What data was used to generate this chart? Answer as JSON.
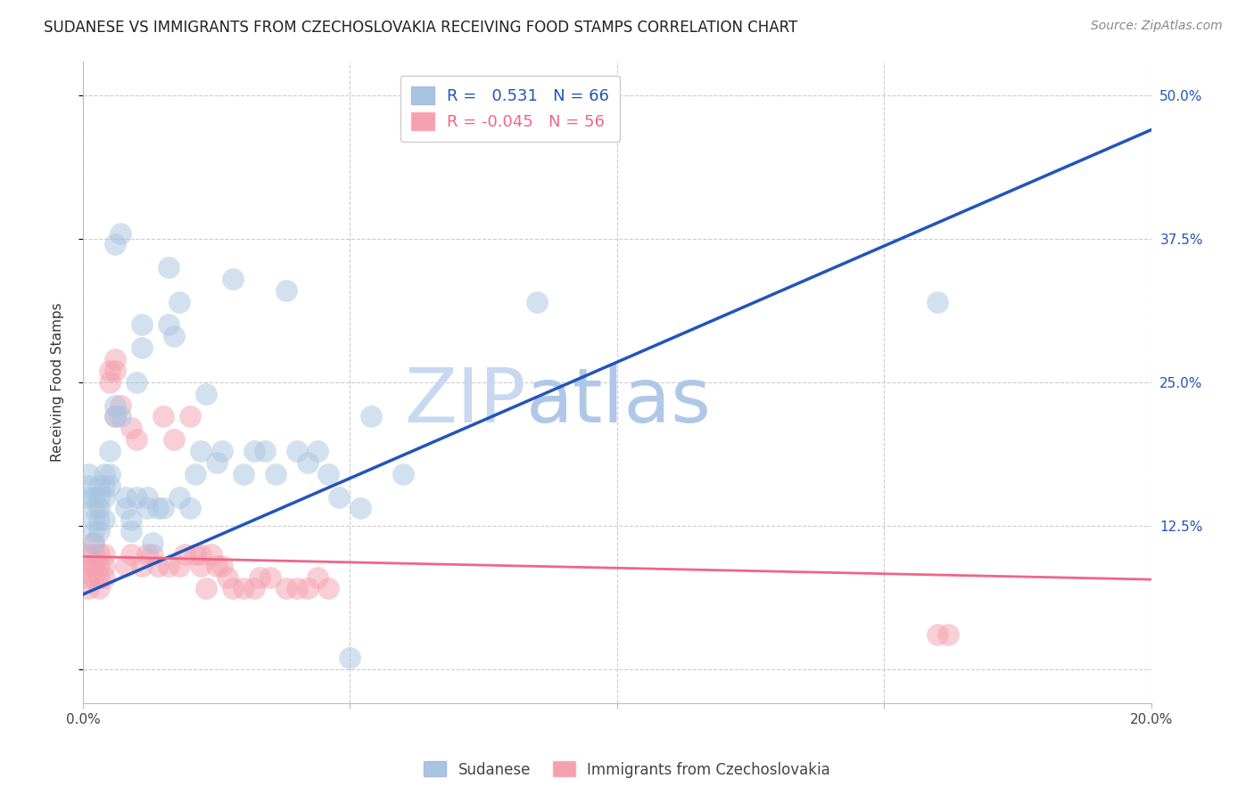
{
  "title": "SUDANESE VS IMMIGRANTS FROM CZECHOSLOVAKIA RECEIVING FOOD STAMPS CORRELATION CHART",
  "source": "Source: ZipAtlas.com",
  "ylabel": "Receiving Food Stamps",
  "xlim": [
    0,
    0.2
  ],
  "ylim": [
    -0.03,
    0.53
  ],
  "xticks": [
    0.0,
    0.05,
    0.1,
    0.15,
    0.2
  ],
  "xtick_labels": [
    "0.0%",
    "",
    "",
    "",
    "20.0%"
  ],
  "yticks": [
    0.0,
    0.125,
    0.25,
    0.375,
    0.5
  ],
  "ytick_labels": [
    "",
    "12.5%",
    "25.0%",
    "37.5%",
    "50.0%"
  ],
  "blue_R": 0.531,
  "blue_N": 66,
  "pink_R": -0.045,
  "pink_N": 56,
  "blue_color": "#A8C4E0",
  "pink_color": "#F4A0B0",
  "blue_line_color": "#2255BB",
  "pink_line_color": "#EE6688",
  "watermark_zip": "ZIP",
  "watermark_atlas": "atlas",
  "background_color": "#FFFFFF",
  "grid_color": "#CCCCCC",
  "blue_line_x": [
    0.0,
    0.2
  ],
  "blue_line_y": [
    0.065,
    0.47
  ],
  "pink_line_x": [
    0.0,
    0.2
  ],
  "pink_line_y": [
    0.098,
    0.078
  ],
  "blue_x": [
    0.001,
    0.001,
    0.001,
    0.002,
    0.002,
    0.002,
    0.002,
    0.002,
    0.003,
    0.003,
    0.003,
    0.003,
    0.003,
    0.004,
    0.004,
    0.004,
    0.004,
    0.005,
    0.005,
    0.005,
    0.006,
    0.006,
    0.006,
    0.007,
    0.007,
    0.008,
    0.008,
    0.009,
    0.009,
    0.01,
    0.01,
    0.011,
    0.011,
    0.012,
    0.012,
    0.013,
    0.014,
    0.015,
    0.016,
    0.016,
    0.017,
    0.018,
    0.018,
    0.02,
    0.021,
    0.022,
    0.023,
    0.025,
    0.026,
    0.028,
    0.03,
    0.032,
    0.034,
    0.036,
    0.038,
    0.04,
    0.042,
    0.044,
    0.046,
    0.048,
    0.05,
    0.052,
    0.054,
    0.06,
    0.085,
    0.16
  ],
  "blue_y": [
    0.17,
    0.16,
    0.15,
    0.15,
    0.14,
    0.13,
    0.12,
    0.11,
    0.16,
    0.15,
    0.14,
    0.13,
    0.12,
    0.17,
    0.16,
    0.15,
    0.13,
    0.19,
    0.17,
    0.16,
    0.37,
    0.23,
    0.22,
    0.38,
    0.22,
    0.15,
    0.14,
    0.13,
    0.12,
    0.25,
    0.15,
    0.3,
    0.28,
    0.15,
    0.14,
    0.11,
    0.14,
    0.14,
    0.35,
    0.3,
    0.29,
    0.32,
    0.15,
    0.14,
    0.17,
    0.19,
    0.24,
    0.18,
    0.19,
    0.34,
    0.17,
    0.19,
    0.19,
    0.17,
    0.33,
    0.19,
    0.18,
    0.19,
    0.17,
    0.15,
    0.01,
    0.14,
    0.22,
    0.17,
    0.32,
    0.32
  ],
  "pink_x": [
    0.001,
    0.001,
    0.001,
    0.001,
    0.002,
    0.002,
    0.002,
    0.002,
    0.002,
    0.003,
    0.003,
    0.003,
    0.003,
    0.004,
    0.004,
    0.004,
    0.005,
    0.005,
    0.006,
    0.006,
    0.006,
    0.007,
    0.008,
    0.009,
    0.009,
    0.01,
    0.011,
    0.012,
    0.013,
    0.014,
    0.015,
    0.016,
    0.017,
    0.018,
    0.019,
    0.02,
    0.021,
    0.022,
    0.022,
    0.023,
    0.024,
    0.025,
    0.026,
    0.027,
    0.028,
    0.03,
    0.032,
    0.033,
    0.035,
    0.038,
    0.04,
    0.042,
    0.044,
    0.046,
    0.16,
    0.162
  ],
  "pink_y": [
    0.1,
    0.09,
    0.08,
    0.07,
    0.11,
    0.1,
    0.09,
    0.09,
    0.08,
    0.1,
    0.09,
    0.08,
    0.07,
    0.1,
    0.09,
    0.08,
    0.26,
    0.25,
    0.27,
    0.26,
    0.22,
    0.23,
    0.09,
    0.21,
    0.1,
    0.2,
    0.09,
    0.1,
    0.1,
    0.09,
    0.22,
    0.09,
    0.2,
    0.09,
    0.1,
    0.22,
    0.1,
    0.1,
    0.09,
    0.07,
    0.1,
    0.09,
    0.09,
    0.08,
    0.07,
    0.07,
    0.07,
    0.08,
    0.08,
    0.07,
    0.07,
    0.07,
    0.08,
    0.07,
    0.03,
    0.03
  ]
}
